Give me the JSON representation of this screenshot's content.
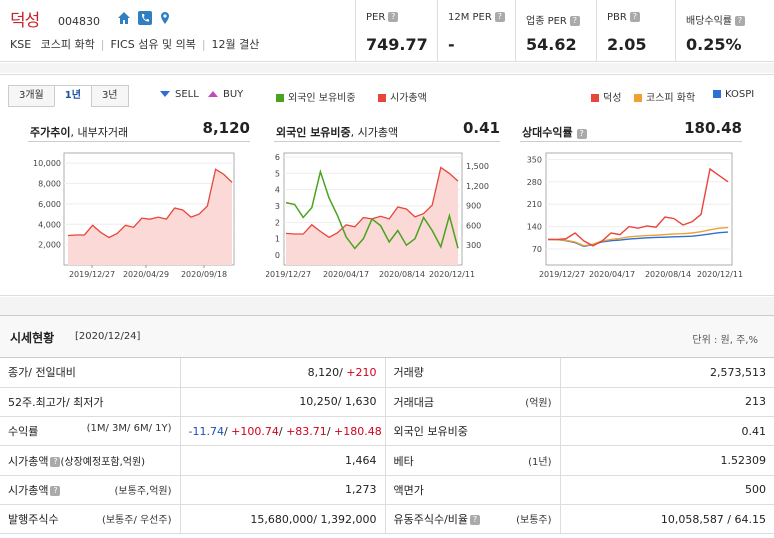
{
  "header": {
    "name": "덕성",
    "code": "004830",
    "market": "KSE",
    "sector1": "코스피 화학",
    "sector2": "FICS 섬유 및 의복",
    "fiscal": "12월 결산",
    "metrics": [
      {
        "label": "PER",
        "value": "749.77"
      },
      {
        "label": "12M PER",
        "value": "-"
      },
      {
        "label": "업종 PER",
        "value": "54.62"
      },
      {
        "label": "PBR",
        "value": "2.05"
      },
      {
        "label": "배당수익률",
        "value": "0.25%"
      }
    ]
  },
  "tabs": [
    "3개월",
    "1년",
    "3년"
  ],
  "legend": {
    "sell": "SELL",
    "buy": "BUY",
    "foreign": "외국인 보유비중",
    "mcap": "시가총액",
    "stock": "덕성",
    "industry": "코스피 화학",
    "kospi": "KOSPI"
  },
  "colors": {
    "red": "#e8453c",
    "green": "#4aa31f",
    "orange": "#f0a030",
    "blue": "#2d6fd3",
    "fill": "#fad9d6"
  },
  "panels": {
    "p1": {
      "title": "주가추이",
      "title2": ", 내부자거래",
      "value": "8,120"
    },
    "p2": {
      "title": "외국인 보유비중",
      "title2": ", 시가총액",
      "value": "0.41"
    },
    "p3": {
      "title": "상대수익률",
      "value": "180.48"
    }
  },
  "chart_data": [
    {
      "type": "area",
      "title": "주가추이",
      "xticks": [
        "2019/12/27",
        "2020/04/29",
        "2020/09/18"
      ],
      "yticks": [
        "10,000",
        "8,000",
        "6,000",
        "4,000",
        "2,000"
      ],
      "ylim": [
        0,
        11000
      ],
      "series": [
        {
          "name": "덕성",
          "values": [
            2900,
            2950,
            2950,
            3900,
            3200,
            2700,
            3100,
            3900,
            3700,
            4600,
            4500,
            4700,
            4500,
            5600,
            5400,
            4700,
            5000,
            5800,
            9400,
            8900,
            8120
          ]
        }
      ]
    },
    {
      "type": "line",
      "title": "외국인 보유비중, 시가총액",
      "xticks": [
        "2019/12/27",
        "2020/04/17",
        "2020/08/14",
        "2020/12/11"
      ],
      "yticks_left": [
        "6",
        "5",
        "4",
        "3",
        "2",
        "1",
        "0"
      ],
      "yticks_right": [
        "1,500",
        "1,200",
        "900",
        "600",
        "300"
      ],
      "series": [
        {
          "name": "외국인 보유비중",
          "axis": "left",
          "values": [
            3.2,
            3.1,
            2.3,
            2.9,
            5.1,
            3.5,
            2.4,
            1.1,
            0.4,
            1.0,
            2.2,
            1.8,
            0.8,
            1.5,
            0.6,
            1.0,
            2.3,
            1.5,
            0.5,
            2.4,
            0.41
          ]
        },
        {
          "name": "시가총액",
          "axis": "right",
          "values": [
            480,
            470,
            470,
            610,
            510,
            420,
            490,
            610,
            580,
            720,
            700,
            740,
            700,
            880,
            850,
            730,
            780,
            910,
            1480,
            1390,
            1273
          ]
        }
      ]
    },
    {
      "type": "line",
      "title": "상대수익률",
      "xticks": [
        "2019/12/27",
        "2020/04/17",
        "2020/08/14",
        "2020/12/11"
      ],
      "yticks": [
        "350",
        "280",
        "210",
        "140",
        "70"
      ],
      "series": [
        {
          "name": "덕성",
          "values": [
            100,
            100,
            102,
            120,
            95,
            80,
            95,
            120,
            115,
            140,
            135,
            142,
            138,
            170,
            165,
            145,
            155,
            178,
            320,
            300,
            280
          ]
        },
        {
          "name": "코스피 화학",
          "values": [
            100,
            99,
            97,
            92,
            80,
            85,
            95,
            100,
            103,
            108,
            110,
            112,
            113,
            115,
            117,
            118,
            120,
            124,
            130,
            135,
            137
          ]
        },
        {
          "name": "KOSPI",
          "values": [
            100,
            99,
            96,
            90,
            78,
            84,
            92,
            96,
            98,
            101,
            103,
            105,
            106,
            107,
            108,
            109,
            110,
            113,
            117,
            121,
            123
          ]
        }
      ]
    }
  ],
  "quote": {
    "title": "시세현황",
    "date": "[2020/12/24]",
    "unit": "단위 : 원, 주,%",
    "rows": [
      {
        "l1": "종가/ 전일대비",
        "s1": "",
        "v1": "8,120/",
        "v1b": " +210",
        "l2": "거래량",
        "s2": "",
        "v2": "2,573,513"
      },
      {
        "l1": "52주.최고가/ 최저가",
        "s1": "",
        "v1": "10,250/ 1,630",
        "v1b": "",
        "l2": "거래대금",
        "s2": "(억원)",
        "v2": "213"
      },
      {
        "l1": "수익률",
        "s1": "(1M/ 3M/ 6M/ 1Y)",
        "v1": "",
        "v1b": "",
        "l2": "외국인 보유비중",
        "s2": "",
        "v2": "0.41"
      },
      {
        "l1": "시가총액",
        "s1": "(상장예정포함,억원)",
        "v1": "1,464",
        "v1b": "",
        "l2": "베타",
        "s2": "(1년)",
        "v2": "1.52309"
      },
      {
        "l1": "시가총액",
        "s1": "(보통주,억원)",
        "v1": "1,273",
        "v1b": "",
        "l2": "액면가",
        "s2": "",
        "v2": "500"
      },
      {
        "l1": "발행주식수",
        "s1": "(보통주/ 우선주)",
        "v1": "15,680,000/ 1,392,000",
        "v1b": "",
        "l2": "유동주식수/비율",
        "s2": "(보통주)",
        "v2": "10,058,587 / 64.15"
      }
    ],
    "returns": [
      "-11.74",
      "/ ",
      "+100.74",
      "/ ",
      "+83.71",
      "/ ",
      "+180.48"
    ]
  }
}
